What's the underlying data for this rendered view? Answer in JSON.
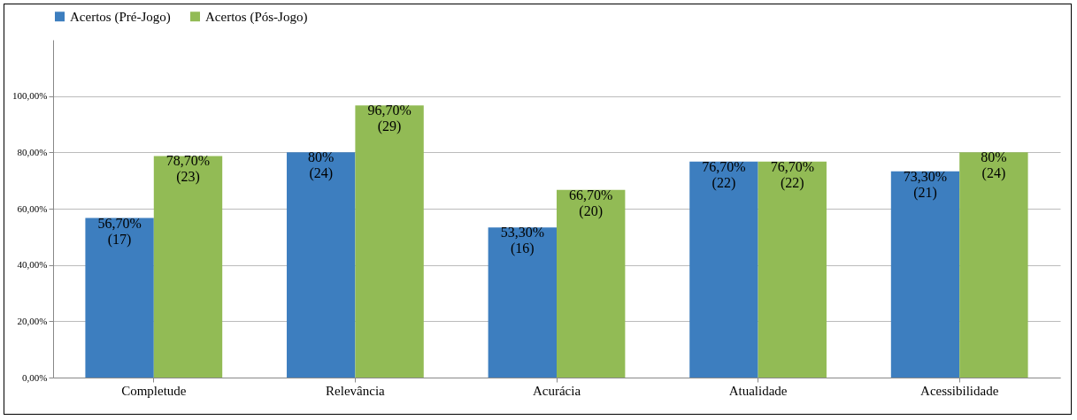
{
  "chart_data": {
    "type": "bar",
    "categories": [
      "Completude",
      "Relevância",
      "Acurácia",
      "Atualidade",
      "Acessibilidade"
    ],
    "series": [
      {
        "name": "Acertos (Pré-Jogo)",
        "color": "#3d7ebf",
        "values": [
          56.7,
          80,
          53.3,
          76.7,
          73.3
        ],
        "value_labels": [
          "56,70%\n(17)",
          "80%\n(24)",
          "53,30%\n(16)",
          "76,70%\n(22)",
          "73,30%\n(21)"
        ]
      },
      {
        "name": "Acertos (Pós-Jogo)",
        "color": "#92bb55",
        "values": [
          78.7,
          96.7,
          66.7,
          76.7,
          80
        ],
        "value_labels": [
          "78,70%\n(23)",
          "96,70%\n(29)",
          "66,70%\n(20)",
          "76,70%\n(22)",
          "80%\n(24)"
        ]
      }
    ],
    "ylim": [
      0,
      120
    ],
    "yticks": [
      {
        "value": 0,
        "label": "0,00%"
      },
      {
        "value": 20,
        "label": "20,00%"
      },
      {
        "value": 40,
        "label": "40,00%"
      },
      {
        "value": 60,
        "label": "60,00%"
      },
      {
        "value": 80,
        "label": "80,00%"
      },
      {
        "value": 100,
        "label": "100,00%"
      }
    ],
    "grid": "y",
    "legend": "top"
  }
}
